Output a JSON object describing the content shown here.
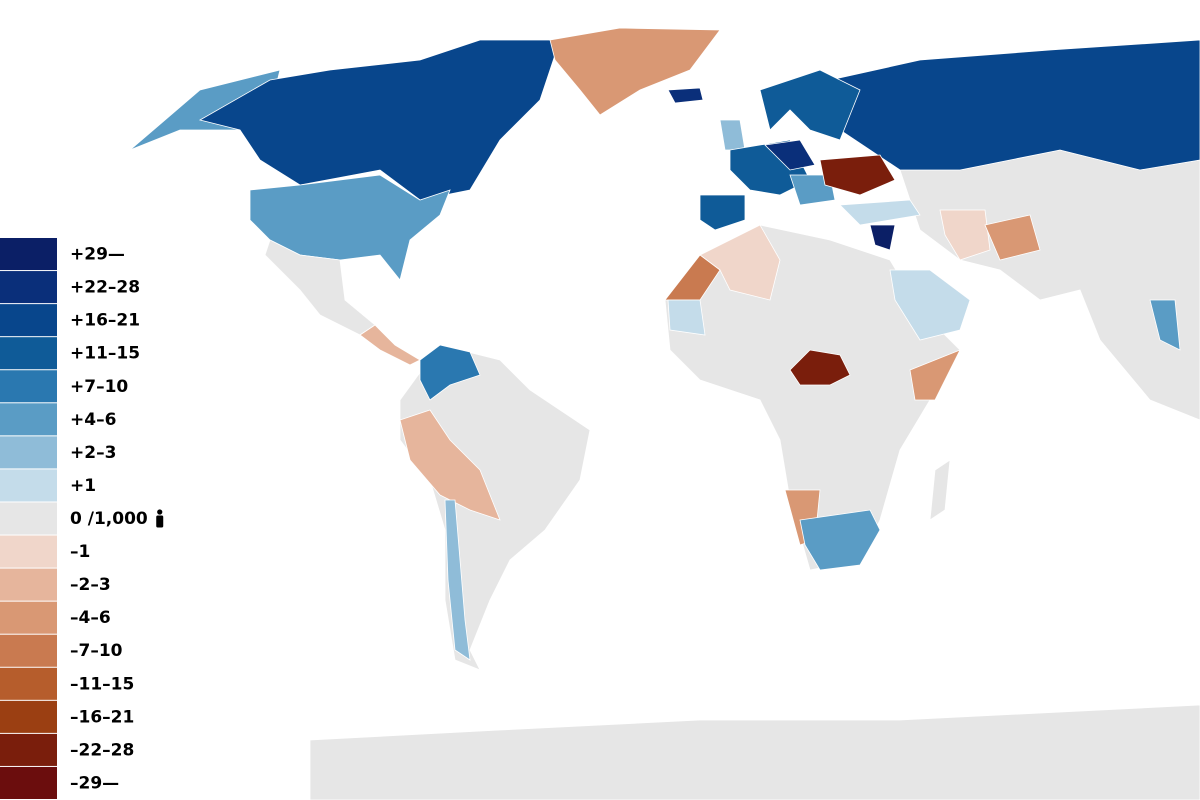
{
  "legend": {
    "items": [
      {
        "label": "+29—",
        "color": "#0b1f66"
      },
      {
        "label": "+22–28",
        "color": "#0a2f7a"
      },
      {
        "label": "+16–21",
        "color": "#08468c"
      },
      {
        "label": "+11–15",
        "color": "#0f5b98"
      },
      {
        "label": "+7–10",
        "color": "#2a78b0"
      },
      {
        "label": "+4–6",
        "color": "#5a9cc5"
      },
      {
        "label": "+2–3",
        "color": "#8fbcd8"
      },
      {
        "label": "+1",
        "color": "#c4dcea"
      },
      {
        "label": "0 /1,000",
        "color": "#e6e6e6"
      },
      {
        "label": "–1",
        "color": "#f0d6ca"
      },
      {
        "label": "–2–3",
        "color": "#e6b59c"
      },
      {
        "label": "–4–6",
        "color": "#d99874"
      },
      {
        "label": "–7–10",
        "color": "#c97a50"
      },
      {
        "label": "–11–15",
        "color": "#b65d2c"
      },
      {
        "label": "–16–21",
        "color": "#9b3f12"
      },
      {
        "label": "–22–28",
        "color": "#7a1e0c"
      },
      {
        "label": "–29—",
        "color": "#6b0d0d"
      }
    ]
  }
}
